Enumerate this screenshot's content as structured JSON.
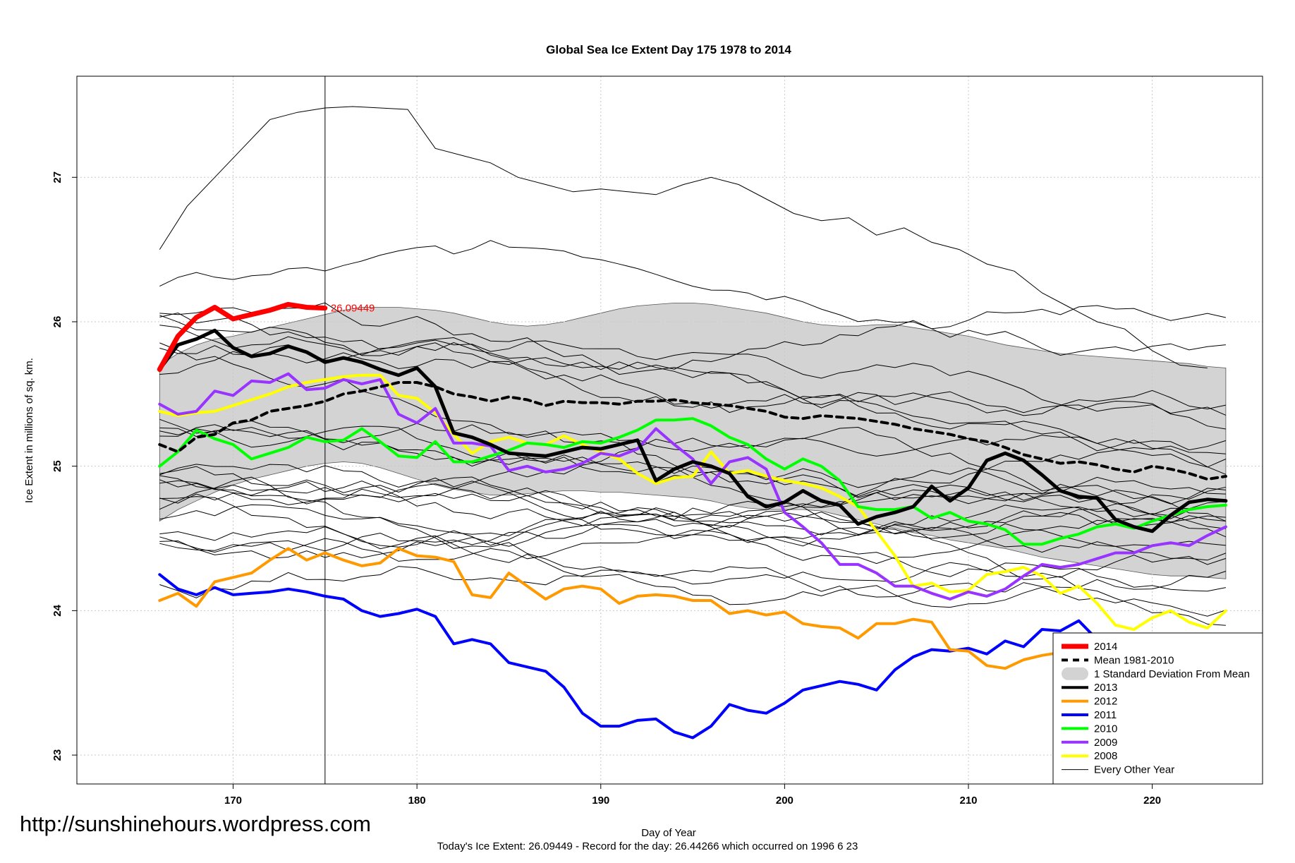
{
  "page": {
    "url_text": "http://sunshinehours.wordpress.com"
  },
  "chart_data": {
    "type": "line",
    "title": "Global Sea Ice Extent Day 175 1978 to 2014",
    "xlabel": "Day of Year",
    "ylabel": "Ice Extent in millions of sq. km.",
    "footnote": "Today's Ice Extent: 26.09449  - Record for the day: 26.44266 which occurred on 1996 6 23",
    "xlim": [
      161.5,
      226
    ],
    "ylim": [
      22.8,
      27.7
    ],
    "xticks": [
      170,
      180,
      190,
      200,
      210,
      220
    ],
    "yticks": [
      23,
      24,
      25,
      26,
      27
    ],
    "grid": true,
    "legend_position": "bottom-right",
    "current_day": 175,
    "current_value_label": "26.09449",
    "band": {
      "x": [
        166,
        167,
        168,
        169,
        170,
        171,
        172,
        173,
        174,
        175,
        176,
        177,
        178,
        179,
        180,
        181,
        182,
        183,
        184,
        185,
        186,
        187,
        188,
        189,
        190,
        191,
        192,
        193,
        194,
        195,
        196,
        197,
        198,
        199,
        200,
        201,
        202,
        203,
        204,
        205,
        206,
        207,
        208,
        209,
        210,
        211,
        212,
        213,
        214,
        215,
        216,
        217,
        218,
        219,
        220,
        221,
        222,
        223,
        224
      ],
      "upper": [
        25.7,
        25.78,
        25.84,
        25.88,
        25.9,
        25.93,
        25.96,
        25.99,
        26.02,
        26.05,
        26.08,
        26.1,
        26.1,
        26.1,
        26.09,
        26.08,
        26.06,
        26.03,
        26.0,
        25.98,
        25.97,
        25.98,
        26.0,
        26.03,
        26.06,
        26.09,
        26.11,
        26.12,
        26.13,
        26.13,
        26.12,
        26.1,
        26.08,
        26.06,
        26.03,
        26.0,
        25.98,
        25.97,
        25.97,
        25.98,
        25.98,
        25.96,
        25.94,
        25.92,
        25.9,
        25.87,
        25.84,
        25.82,
        25.8,
        25.78,
        25.77,
        25.76,
        25.75,
        25.74,
        25.73,
        25.72,
        25.71,
        25.69,
        25.68
      ],
      "lower": [
        24.62,
        24.7,
        24.76,
        24.82,
        24.87,
        24.91,
        24.94,
        24.97,
        25.0,
        25.02,
        25.03,
        25.02,
        24.99,
        24.95,
        24.91,
        24.87,
        24.84,
        24.82,
        24.8,
        24.8,
        24.81,
        24.82,
        24.83,
        24.83,
        24.82,
        24.82,
        24.81,
        24.8,
        24.79,
        24.78,
        24.76,
        24.73,
        24.71,
        24.7,
        24.7,
        24.7,
        24.69,
        24.66,
        24.63,
        24.6,
        24.57,
        24.54,
        24.52,
        24.49,
        24.47,
        24.45,
        24.43,
        24.4,
        24.37,
        24.35,
        24.33,
        24.31,
        24.29,
        24.27,
        24.25,
        24.24,
        24.24,
        24.23,
        24.22
      ]
    },
    "series": [
      {
        "name": "2014",
        "color": "#ff0000",
        "width": 7,
        "x0": 166,
        "values": [
          25.67,
          25.9,
          26.03,
          26.1,
          26.02,
          26.05,
          26.08,
          26.12,
          26.1,
          26.09449
        ]
      },
      {
        "name": "Mean 1981-2010",
        "color": "#000000",
        "width": 4,
        "dash": "9,7",
        "x0": 166,
        "values": [
          25.15,
          25.1,
          25.2,
          25.22,
          25.3,
          25.32,
          25.38,
          25.4,
          25.42,
          25.45,
          25.5,
          25.52,
          25.55,
          25.58,
          25.58,
          25.55,
          25.5,
          25.48,
          25.45,
          25.48,
          25.46,
          25.42,
          25.45,
          25.44,
          25.44,
          25.43,
          25.45,
          25.45,
          25.46,
          25.44,
          25.43,
          25.42,
          25.4,
          25.38,
          25.34,
          25.33,
          25.35,
          25.34,
          25.33,
          25.31,
          25.29,
          25.26,
          25.24,
          25.22,
          25.19,
          25.17,
          25.13,
          25.08,
          25.05,
          25.02,
          25.03,
          25.01,
          24.98,
          24.96,
          25.0,
          24.98,
          24.95,
          24.91,
          24.93
        ]
      },
      {
        "name": "2013",
        "color": "#000000",
        "width": 5,
        "x0": 166,
        "values": [
          25.67,
          25.84,
          25.88,
          25.94,
          25.82,
          25.76,
          25.78,
          25.83,
          25.79,
          25.72,
          25.75,
          25.72,
          25.67,
          25.63,
          25.68,
          25.55,
          25.23,
          25.2,
          25.15,
          25.09,
          25.08,
          25.07,
          25.1,
          25.13,
          25.12,
          25.15,
          25.18,
          24.9,
          24.98,
          25.03,
          25.0,
          24.95,
          24.79,
          24.72,
          24.75,
          24.83,
          24.76,
          24.73,
          24.6,
          24.65,
          24.68,
          24.72,
          24.86,
          24.76,
          24.85,
          25.04,
          25.09,
          25.04,
          24.94,
          24.83,
          24.79,
          24.78,
          24.63,
          24.58,
          24.55,
          24.66,
          24.75,
          24.77,
          24.76
        ]
      },
      {
        "name": "2012",
        "color": "#ff9900",
        "width": 4,
        "x0": 166,
        "values": [
          24.07,
          24.12,
          24.03,
          24.2,
          24.23,
          24.26,
          24.35,
          24.43,
          24.35,
          24.4,
          24.35,
          24.31,
          24.33,
          24.43,
          24.38,
          24.37,
          24.34,
          24.11,
          24.09,
          24.26,
          24.17,
          24.08,
          24.15,
          24.17,
          24.15,
          24.05,
          24.1,
          24.11,
          24.1,
          24.07,
          24.07,
          23.98,
          24.0,
          23.97,
          23.99,
          23.91,
          23.89,
          23.88,
          23.81,
          23.91,
          23.91,
          23.94,
          23.92,
          23.73,
          23.72,
          23.62,
          23.6,
          23.66,
          23.69,
          23.71,
          23.7,
          23.67,
          23.52,
          23.42,
          23.32,
          23.11,
          23.0,
          23.05,
          23.03
        ]
      },
      {
        "name": "2011",
        "color": "#0000ff",
        "width": 4,
        "x0": 166,
        "values": [
          24.25,
          24.15,
          24.11,
          24.16,
          24.11,
          24.12,
          24.13,
          24.15,
          24.13,
          24.1,
          24.08,
          24.0,
          23.96,
          23.98,
          24.01,
          23.96,
          23.77,
          23.8,
          23.77,
          23.64,
          23.61,
          23.58,
          23.47,
          23.29,
          23.2,
          23.2,
          23.24,
          23.25,
          23.16,
          23.12,
          23.2,
          23.35,
          23.31,
          23.29,
          23.36,
          23.45,
          23.48,
          23.51,
          23.49,
          23.45,
          23.59,
          23.68,
          23.73,
          23.72,
          23.74,
          23.7,
          23.79,
          23.75,
          23.87,
          23.86,
          23.93,
          23.8,
          23.7,
          23.62,
          23.49,
          23.42,
          23.43,
          23.43,
          23.43
        ]
      },
      {
        "name": "2010",
        "color": "#00ff00",
        "width": 4,
        "x0": 166,
        "values": [
          25.0,
          25.1,
          25.25,
          25.19,
          25.15,
          25.05,
          25.09,
          25.13,
          25.2,
          25.17,
          25.18,
          25.26,
          25.17,
          25.07,
          25.06,
          25.17,
          25.03,
          25.03,
          25.07,
          25.11,
          25.16,
          25.15,
          25.13,
          25.17,
          25.16,
          25.2,
          25.25,
          25.32,
          25.32,
          25.33,
          25.28,
          25.2,
          25.15,
          25.05,
          24.98,
          25.05,
          25.0,
          24.9,
          24.72,
          24.7,
          24.7,
          24.72,
          24.64,
          24.68,
          24.62,
          24.6,
          24.56,
          24.46,
          24.46,
          24.5,
          24.53,
          24.58,
          24.6,
          24.57,
          24.62,
          24.66,
          24.7,
          24.72,
          24.73
        ]
      },
      {
        "name": "2009",
        "color": "#9933ff",
        "width": 4,
        "x0": 166,
        "values": [
          25.43,
          25.36,
          25.38,
          25.52,
          25.49,
          25.59,
          25.58,
          25.64,
          25.53,
          25.54,
          25.6,
          25.57,
          25.6,
          25.36,
          25.3,
          25.4,
          25.16,
          25.16,
          25.14,
          24.97,
          25.0,
          24.96,
          24.98,
          25.02,
          25.09,
          25.07,
          25.12,
          25.26,
          25.15,
          25.05,
          24.88,
          25.03,
          25.06,
          24.98,
          24.68,
          24.58,
          24.47,
          24.32,
          24.32,
          24.26,
          24.17,
          24.17,
          24.12,
          24.08,
          24.13,
          24.1,
          24.15,
          24.24,
          24.32,
          24.3,
          24.32,
          24.36,
          24.4,
          24.4,
          24.45,
          24.47,
          24.45,
          24.52,
          24.58
        ]
      },
      {
        "name": "2008",
        "color": "#ffff00",
        "width": 4,
        "x0": 166,
        "values": [
          25.38,
          25.35,
          25.37,
          25.38,
          25.42,
          25.46,
          25.5,
          25.55,
          25.58,
          25.6,
          25.62,
          25.63,
          25.63,
          25.49,
          25.47,
          25.37,
          25.22,
          25.09,
          25.17,
          25.2,
          25.16,
          25.15,
          25.21,
          25.15,
          25.1,
          25.05,
          24.95,
          24.88,
          24.92,
          24.93,
          25.1,
          24.95,
          24.97,
          24.93,
          24.9,
          24.88,
          24.85,
          24.79,
          24.72,
          24.55,
          24.38,
          24.17,
          24.19,
          24.13,
          24.14,
          24.25,
          24.27,
          24.3,
          24.24,
          24.12,
          24.17,
          24.05,
          23.9,
          23.87,
          23.95,
          24.0,
          23.92,
          23.88,
          24.0
        ]
      }
    ],
    "legend": [
      {
        "label": "2014",
        "color": "#ff0000",
        "kind": "thick"
      },
      {
        "label": "Mean 1981-2010",
        "color": "#000000",
        "kind": "dash"
      },
      {
        "label": "1 Standard Deviation From Mean",
        "color": "#d3d3d3",
        "kind": "band"
      },
      {
        "label": "2013",
        "color": "#000000",
        "kind": "line"
      },
      {
        "label": "2012",
        "color": "#ff9900",
        "kind": "line"
      },
      {
        "label": "2011",
        "color": "#0000ff",
        "kind": "line"
      },
      {
        "label": "2010",
        "color": "#00ff00",
        "kind": "line"
      },
      {
        "label": "2009",
        "color": "#9933ff",
        "kind": "line"
      },
      {
        "label": "2008",
        "color": "#ffff00",
        "kind": "line"
      },
      {
        "label": "Every Other Year",
        "color": "#000000",
        "kind": "thin"
      }
    ]
  }
}
